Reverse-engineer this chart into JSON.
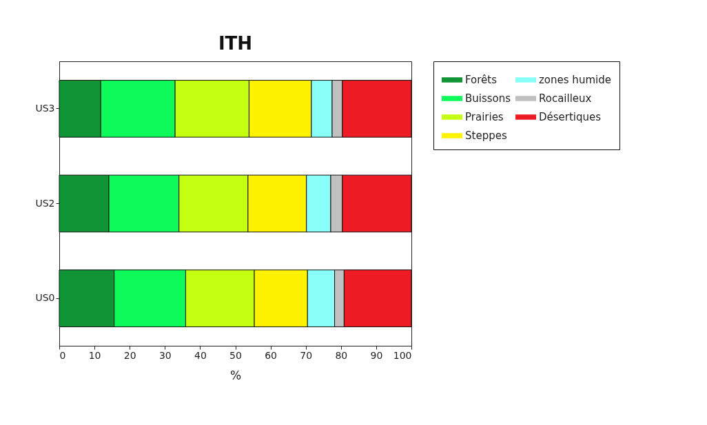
{
  "chart_data": {
    "type": "bar",
    "orientation": "horizontal",
    "stacked": true,
    "title": "ITH",
    "xlabel": "%",
    "categories": [
      "US3",
      "US2",
      "US0"
    ],
    "series": [
      {
        "name": "Forêts",
        "color": "#0f9535",
        "values": [
          11.8,
          14.1,
          15.6
        ]
      },
      {
        "name": "Buissons",
        "color": "#0efa5a",
        "values": [
          21.1,
          19.9,
          20.3
        ]
      },
      {
        "name": "Prairies",
        "color": "#c3ff0f",
        "values": [
          21.0,
          19.6,
          19.5
        ]
      },
      {
        "name": "Steppes",
        "color": "#fff200",
        "values": [
          17.7,
          16.6,
          15.1
        ]
      },
      {
        "name": "zones humide",
        "color": "#88fff8",
        "values": [
          5.9,
          6.9,
          7.7
        ]
      },
      {
        "name": "Rocailleux",
        "color": "#c0c0c0",
        "values": [
          2.9,
          3.3,
          2.7
        ]
      },
      {
        "name": "Désertiques",
        "color": "#ed1c24",
        "values": [
          19.6,
          19.6,
          19.1
        ]
      }
    ],
    "xlim": [
      0,
      100
    ],
    "xticks": [
      0,
      10,
      20,
      30,
      40,
      50,
      60,
      70,
      80,
      90,
      100
    ],
    "grid": false,
    "legend": "right"
  }
}
